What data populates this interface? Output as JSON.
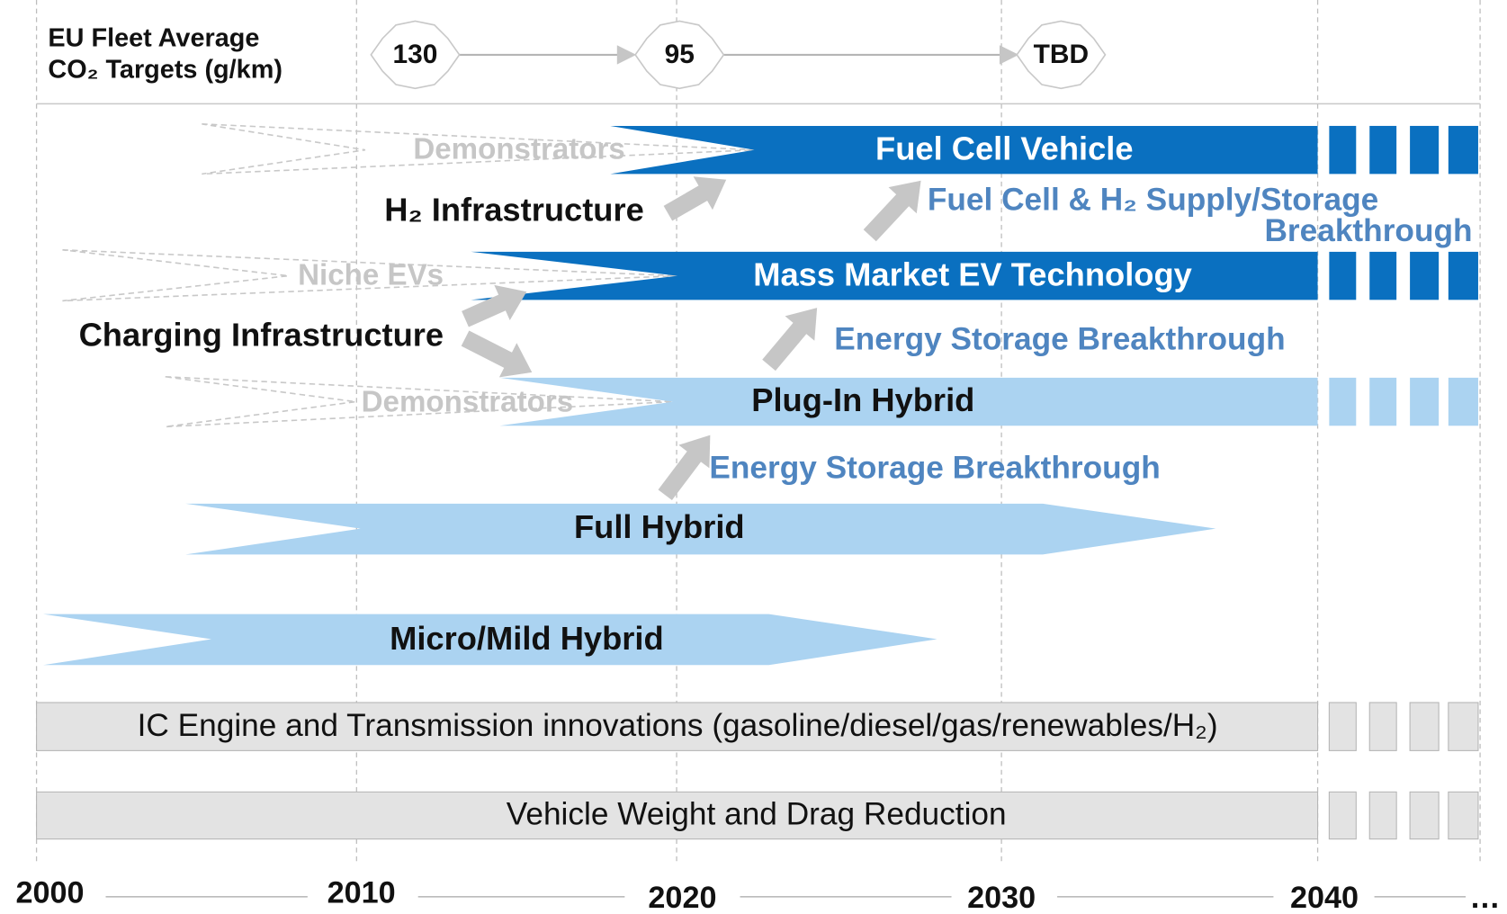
{
  "targets": {
    "label": [
      "EU Fleet Average",
      "CO₂ Targets (g/km)"
    ],
    "values": [
      "130",
      "95",
      "TBD"
    ]
  },
  "rows": [
    {
      "precursor": "Demonstrators",
      "label": "Fuel Cell Vehicle"
    },
    {
      "precursor": "Niche EVs",
      "label": "Mass Market EV Technology"
    },
    {
      "precursor": "Demonstrators",
      "label": "Plug-In Hybrid"
    },
    {
      "label": "Full Hybrid"
    },
    {
      "label": "Micro/Mild Hybrid"
    },
    {
      "label": "IC Engine and Transmission innovations (gasoline/diesel/gas/renewables/H₂)"
    },
    {
      "label": "Vehicle Weight and Drag Reduction"
    }
  ],
  "enablers": [
    "H₂ Infrastructure",
    "Charging Infrastructure"
  ],
  "breakthroughs": [
    [
      "Fuel Cell & H₂ Supply/Storage",
      "Breakthrough"
    ],
    [
      "Energy Storage Breakthrough"
    ],
    [
      "Energy Storage Breakthrough"
    ]
  ],
  "years": [
    "2000",
    "2010",
    "2020",
    "2030",
    "2040",
    "…"
  ]
}
